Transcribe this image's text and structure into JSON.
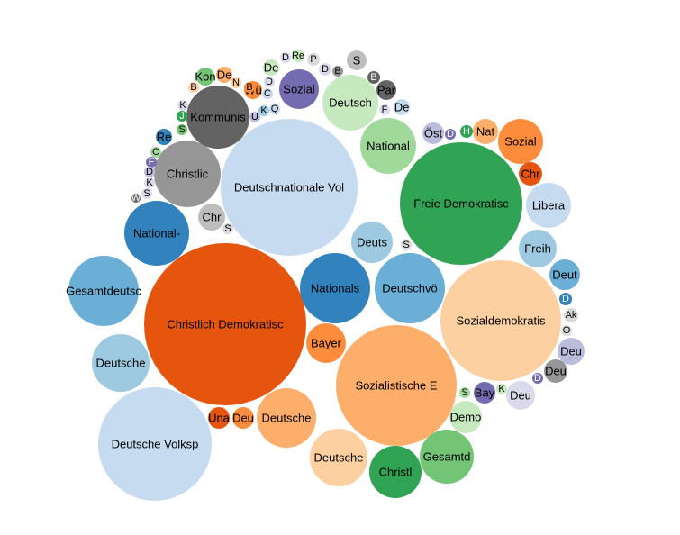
{
  "chart_data": {
    "type": "bubble",
    "title": "",
    "bubbles": [
      {
        "label": "Deutschnationale Vol",
        "value": 100,
        "color": "#c6dbef"
      },
      {
        "label": "Christlich Demokratisc",
        "value": 100,
        "color": "#e6550d"
      },
      {
        "label": "Freie Demokratisc",
        "value": 63,
        "color": "#31a354"
      },
      {
        "label": "Sozialistische E",
        "value": 55,
        "color": "#fdae6b"
      },
      {
        "label": "Sozialdemokratis",
        "value": 55,
        "color": "#fdd0a2"
      },
      {
        "label": "Deutsche Volksp",
        "value": 52,
        "color": "#c6dbef"
      },
      {
        "label": "Gesamtdeutsc",
        "value": 26,
        "color": "#6baed6"
      },
      {
        "label": "Christlic",
        "value": 24,
        "color": "#969696"
      },
      {
        "label": "Kommunis",
        "value": 15,
        "color": "#636363"
      },
      {
        "label": "Nationals",
        "value": 19,
        "color": "#3182bd"
      },
      {
        "label": "Deutschvö",
        "value": 19,
        "color": "#6baed6"
      },
      {
        "label": "National-",
        "value": 16,
        "color": "#3182bd"
      },
      {
        "label": "Deutsche",
        "value": 13,
        "color": "#9ecae1"
      },
      {
        "label": "Deutsche",
        "value": 14,
        "color": "#fdae6b"
      },
      {
        "label": "Deutsche",
        "value": 15,
        "color": "#fdd0a2"
      },
      {
        "label": "National",
        "value": 12,
        "color": "#a1d99b"
      },
      {
        "label": "Deutsch",
        "value": 10,
        "color": "#c7e9c0"
      },
      {
        "label": "Sozial",
        "value": 6,
        "color": "#756bb1"
      },
      {
        "label": "Gesamtd",
        "value": 10,
        "color": "#74c476"
      },
      {
        "label": "Christl",
        "value": 10,
        "color": "#31a354"
      },
      {
        "label": "Libera",
        "value": 8,
        "color": "#c6dbef"
      },
      {
        "label": "Sozial",
        "value": 7,
        "color": "#fd8d3c"
      },
      {
        "label": "Deuts",
        "value": 6,
        "color": "#9ecae1"
      },
      {
        "label": "Freih",
        "value": 5,
        "color": "#9ecae1"
      },
      {
        "label": "Bayer",
        "value": 5,
        "color": "#fd8d3c"
      },
      {
        "label": "Demo",
        "value": 4,
        "color": "#c7e9c0"
      },
      {
        "label": "Deut",
        "value": 3.5,
        "color": "#6baed6"
      },
      {
        "label": "Chr",
        "value": 2.5,
        "color": "#bdbdbd"
      },
      {
        "label": "Deu",
        "value": 2.5,
        "color": "#dadaeb"
      },
      {
        "label": "Nat",
        "value": 2.2,
        "color": "#fdae6b"
      },
      {
        "label": "Chr",
        "value": 2.2,
        "color": "#e6550d"
      },
      {
        "label": "Deu",
        "value": 2.3,
        "color": "#bcbddc"
      },
      {
        "label": "Una",
        "value": 2,
        "color": "#e6550d"
      },
      {
        "label": "Deu",
        "value": 2,
        "color": "#fd8d3c"
      },
      {
        "label": "Bay",
        "value": 1.8,
        "color": "#756bb1"
      },
      {
        "label": "Deu",
        "value": 2,
        "color": "#969696"
      },
      {
        "label": "Par",
        "value": 1.8,
        "color": "#636363"
      },
      {
        "label": "Öst",
        "value": 1.5,
        "color": "#bcbddc"
      },
      {
        "label": "Kon",
        "value": 1.5,
        "color": "#74c476"
      },
      {
        "label": "De",
        "value": 1.3,
        "color": "#fdae6b"
      },
      {
        "label": "Wü",
        "value": 1.2,
        "color": "#fd8d3c"
      },
      {
        "label": "De",
        "value": 1.4,
        "color": "#c6dbef"
      },
      {
        "label": "De",
        "value": 1.1,
        "color": "#c7e9c0"
      },
      {
        "label": "Re",
        "value": 1,
        "color": "#3182bd"
      },
      {
        "label": "Re",
        "value": 1.1,
        "color": "#c7e9c0"
      },
      {
        "label": "P",
        "value": 0.9,
        "color": "#d9d9d9"
      },
      {
        "label": "S",
        "value": 0.9,
        "color": "#bdbdbd"
      },
      {
        "label": "D",
        "value": 0.8,
        "color": "#dadaeb"
      },
      {
        "label": "B",
        "value": 0.7,
        "color": "#969696"
      },
      {
        "label": "B",
        "value": 0.7,
        "color": "#636363"
      },
      {
        "label": "F",
        "value": 0.7,
        "color": "#dadaeb"
      },
      {
        "label": "D",
        "value": 0.6,
        "color": "#756bb1"
      },
      {
        "label": "H",
        "value": 0.6,
        "color": "#31a354"
      },
      {
        "label": "N",
        "value": 0.6,
        "color": "#fdd0a2"
      },
      {
        "label": "B",
        "value": 0.6,
        "color": "#fd8d3c"
      },
      {
        "label": "B",
        "value": 0.6,
        "color": "#fdd0a2"
      },
      {
        "label": "D",
        "value": 0.6,
        "color": "#dadaeb"
      },
      {
        "label": "C",
        "value": 0.6,
        "color": "#c6dbef"
      },
      {
        "label": "K",
        "value": 0.55,
        "color": "#9ecae1"
      },
      {
        "label": "Q",
        "value": 0.5,
        "color": "#c6dbef"
      },
      {
        "label": "U",
        "value": 0.5,
        "color": "#bcbddc"
      },
      {
        "label": "K",
        "value": 0.5,
        "color": "#dadaeb"
      },
      {
        "label": "J",
        "value": 0.5,
        "color": "#31a354"
      },
      {
        "label": "S",
        "value": 0.5,
        "color": "#74c476"
      },
      {
        "label": "C",
        "value": 0.5,
        "color": "#a1d99b"
      },
      {
        "label": "F",
        "value": 0.5,
        "color": "#756bb1"
      },
      {
        "label": "D",
        "value": 0.5,
        "color": "#bcbddc"
      },
      {
        "label": "K",
        "value": 0.5,
        "color": "#dadaeb"
      },
      {
        "label": "S",
        "value": 0.5,
        "color": "#dadaeb"
      },
      {
        "label": "W",
        "value": 0.5,
        "color": "#636363"
      },
      {
        "label": "S",
        "value": 0.5,
        "color": "#d9d9d9"
      },
      {
        "label": "S",
        "value": 0.5,
        "color": "#d9d9d9"
      },
      {
        "label": "S",
        "value": 0.6,
        "color": "#a1d99b"
      },
      {
        "label": "K",
        "value": 0.55,
        "color": "#c7e9c0"
      },
      {
        "label": "D",
        "value": 0.5,
        "color": "#756bb1"
      },
      {
        "label": "D",
        "value": 0.5,
        "color": "#3182bd"
      },
      {
        "label": "Ak",
        "value": 0.5,
        "color": "#d9d9d9"
      },
      {
        "label": "O",
        "value": 0.4,
        "color": "#d9d9d9"
      },
      {
        "label": "D",
        "value": 0.4,
        "color": "#dadaeb"
      }
    ]
  }
}
